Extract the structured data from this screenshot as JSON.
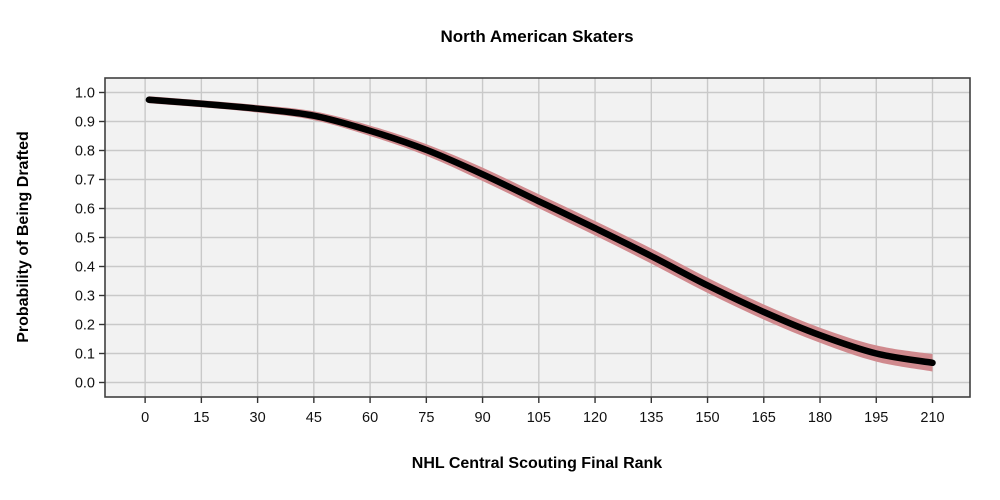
{
  "chart_data": {
    "type": "line",
    "title": "North American Skaters",
    "xlabel": "NHL Central Scouting Final Rank",
    "ylabel": "Probability of Being Drafted",
    "xlim": [
      -10.7,
      220
    ],
    "ylim": [
      -0.05,
      1.05
    ],
    "x_ticks": [
      0,
      15,
      30,
      45,
      60,
      75,
      90,
      105,
      120,
      135,
      150,
      165,
      180,
      195,
      210
    ],
    "x_tick_labels": [
      "0",
      "15",
      "30",
      "45",
      "60",
      "75",
      "90",
      "105",
      "120",
      "135",
      "150",
      "165",
      "180",
      "195",
      "210"
    ],
    "y_ticks": [
      0.0,
      0.1,
      0.2,
      0.3,
      0.4,
      0.5,
      0.6,
      0.7,
      0.8,
      0.9,
      1.0
    ],
    "y_tick_labels": [
      "0.0",
      "0.1",
      "0.2",
      "0.3",
      "0.4",
      "0.5",
      "0.6",
      "0.7",
      "0.8",
      "0.9",
      "1.0"
    ],
    "grid": true,
    "legend": "none",
    "series": [
      {
        "name": "fitted-draft-probability",
        "x": [
          1,
          15,
          30,
          45,
          60,
          75,
          90,
          105,
          120,
          135,
          150,
          165,
          180,
          195,
          210
        ],
        "y": [
          0.975,
          0.961,
          0.944,
          0.92,
          0.868,
          0.802,
          0.718,
          0.625,
          0.532,
          0.436,
          0.335,
          0.243,
          0.163,
          0.1,
          0.068
        ]
      }
    ],
    "band": {
      "name": "confidence-band",
      "x": [
        1,
        15,
        30,
        45,
        60,
        75,
        90,
        105,
        120,
        135,
        150,
        165,
        180,
        195,
        210
      ],
      "upper": [
        0.987,
        0.973,
        0.957,
        0.935,
        0.886,
        0.822,
        0.741,
        0.649,
        0.557,
        0.462,
        0.361,
        0.269,
        0.189,
        0.128,
        0.098
      ],
      "lower": [
        0.963,
        0.949,
        0.931,
        0.905,
        0.85,
        0.782,
        0.695,
        0.601,
        0.507,
        0.41,
        0.309,
        0.217,
        0.137,
        0.072,
        0.038
      ]
    },
    "colors": {
      "line": "#000000",
      "band": "#d08a8e",
      "panel_background": "#f2f2f2",
      "gridline": "#c9c9c9",
      "panel_border": "#404040",
      "tick_mark": "#333333",
      "tick_label": "#111111",
      "outer_background": "#ffffff"
    }
  }
}
